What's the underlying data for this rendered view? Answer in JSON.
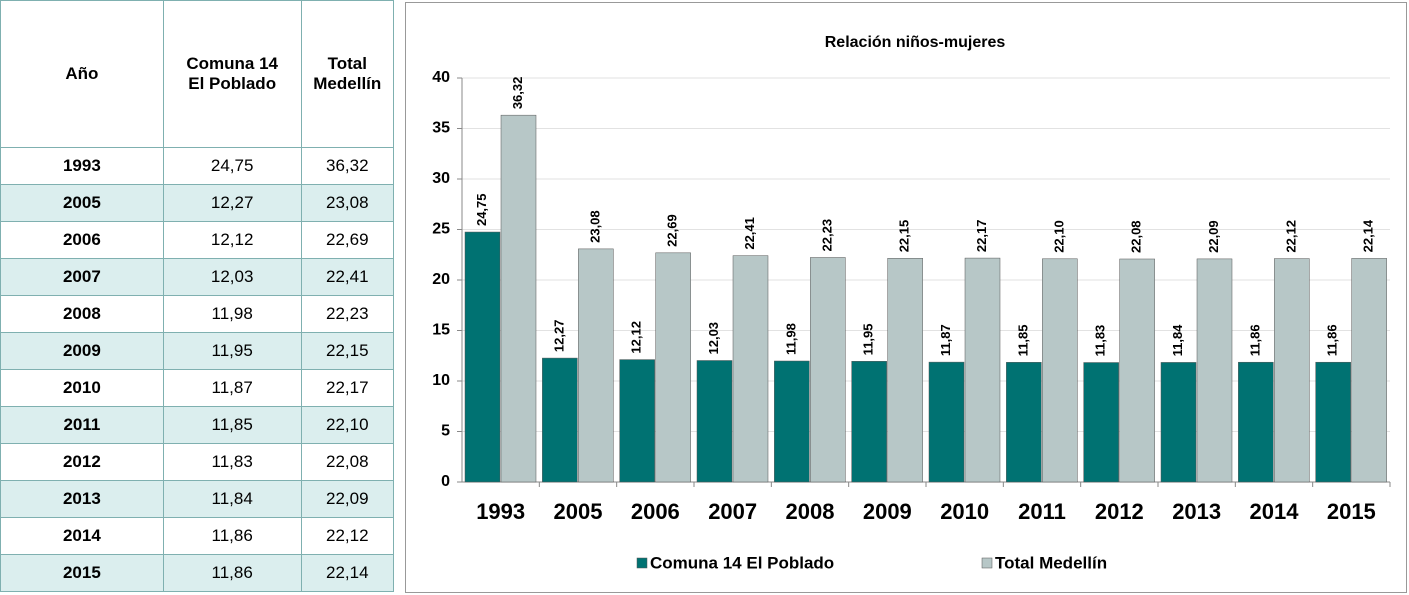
{
  "table": {
    "header": [
      "Año",
      "Comuna 14 El Poblado",
      "Total Medellín"
    ],
    "rows": [
      [
        "1993",
        "24,75",
        "36,32"
      ],
      [
        "2005",
        "12,27",
        "23,08"
      ],
      [
        "2006",
        "12,12",
        "22,69"
      ],
      [
        "2007",
        "12,03",
        "22,41"
      ],
      [
        "2008",
        "11,98",
        "22,23"
      ],
      [
        "2009",
        "11,95",
        "22,15"
      ],
      [
        "2010",
        "11,87",
        "22,17"
      ],
      [
        "2011",
        "11,85",
        "22,10"
      ],
      [
        "2012",
        "11,83",
        "22,08"
      ],
      [
        "2013",
        "11,84",
        "22,09"
      ],
      [
        "2014",
        "11,86",
        "22,12"
      ],
      [
        "2015",
        "11,86",
        "22,14"
      ]
    ]
  },
  "chart_data": {
    "type": "bar",
    "title": "Relación niños-mujeres",
    "categories": [
      "1993",
      "2005",
      "2006",
      "2007",
      "2008",
      "2009",
      "2010",
      "2011",
      "2012",
      "2013",
      "2014",
      "2015"
    ],
    "series": [
      {
        "name": "Comuna 14 El Poblado",
        "color": "#007272",
        "values": [
          24.75,
          12.27,
          12.12,
          12.03,
          11.98,
          11.95,
          11.87,
          11.85,
          11.83,
          11.84,
          11.86,
          11.86
        ],
        "value_labels": [
          "24,75",
          "12,27",
          "12,12",
          "12,03",
          "11,98",
          "11,95",
          "11,87",
          "11,85",
          "11,83",
          "11,84",
          "11,86",
          "11,86"
        ]
      },
      {
        "name": "Total Medellín",
        "color": "#b7c7c7",
        "values": [
          36.32,
          23.08,
          22.69,
          22.41,
          22.23,
          22.15,
          22.17,
          22.1,
          22.08,
          22.09,
          22.12,
          22.14
        ],
        "value_labels": [
          "36,32",
          "23,08",
          "22,69",
          "22,41",
          "22,23",
          "22,15",
          "22,17",
          "22,10",
          "22,08",
          "22,09",
          "22,12",
          "22,14"
        ]
      }
    ],
    "ylim": [
      0,
      40
    ],
    "yticks": [
      0,
      5,
      10,
      15,
      20,
      25,
      30,
      35,
      40
    ],
    "grid": true,
    "legend": "bottom"
  }
}
